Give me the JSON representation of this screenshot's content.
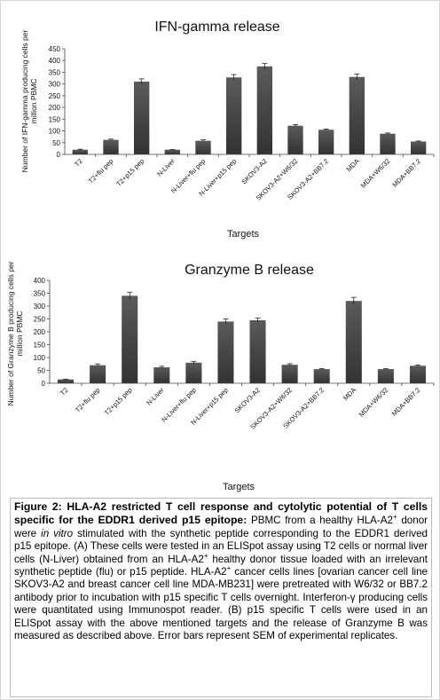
{
  "chart_data": [
    {
      "type": "bar",
      "title": "IFN-gamma release",
      "ylabel_lines": [
        "Number of IFN-gamma producing cells per",
        "million PBMC"
      ],
      "xlabel": "Targets",
      "ylim": [
        0,
        450
      ],
      "yticks": [
        0,
        50,
        100,
        150,
        200,
        250,
        300,
        350,
        400,
        450
      ],
      "categories": [
        "T2",
        "T2+flu pep",
        "T2+p15 pep",
        "N-Liver",
        "N-Liver+flu pep",
        "N-Liver+p15 pep",
        "SKOV3-A2",
        "SKOV3-A2+W6/32",
        "SKOV3-A2+BB7.2",
        "MDA",
        "MDA+W6/32",
        "MDA+BB7.2"
      ],
      "values": [
        20,
        62,
        310,
        20,
        58,
        328,
        375,
        122,
        105,
        330,
        88,
        55
      ],
      "errors": [
        2,
        3,
        12,
        1,
        4,
        12,
        12,
        5,
        3,
        12,
        3,
        2
      ],
      "bar_color": "#4a4a4a"
    },
    {
      "type": "bar",
      "title": "Granzyme B release",
      "ylabel_lines": [
        "Number of Granzyme B producing cells per",
        "million PBMC"
      ],
      "xlabel": "Targets",
      "ylim": [
        0,
        400
      ],
      "yticks": [
        0,
        50,
        100,
        150,
        200,
        250,
        300,
        350,
        400
      ],
      "categories": [
        "T2",
        "T2+flu pep",
        "T2+p15 pep",
        "N-Liver",
        "N-Liver+flu pep",
        "N-Liver+p15 pep",
        "SKOV3-A2",
        "SKOV3-A2+W6/32",
        "SKOV3-A2+BB7.2",
        "MDA",
        "MDA+W6/32",
        "MDA+BB7.2"
      ],
      "values": [
        15,
        70,
        340,
        62,
        80,
        240,
        245,
        72,
        55,
        320,
        55,
        68
      ],
      "errors": [
        1,
        5,
        14,
        4,
        4,
        10,
        8,
        4,
        2,
        14,
        2,
        3
      ],
      "bar_color": "#4a4a4a"
    }
  ],
  "caption": {
    "title": "Figure 2: HLA-A2 restricted T cell response and cytolytic potential of T cells specific for the EDDR1 derived p15 epitope:",
    "s1": " PBMC from a healthy HLA-A2",
    "s2": " donor were ",
    "s3": "in vitro",
    "s4": " stimulated with the synthetic peptide corresponding to the EDDR1 derived p15 epitope.  (A) These cells were tested in an ELISpot assay using T2 cells or normal liver cells (N-Liver) obtained from an HLA-A2",
    "s5": " healthy donor tissue loaded with an irrelevant synthetic peptide (flu) or p15 peptide. HLA-A2",
    "s6": " cancer cells lines [ovarian cancer cell line SKOV3-A2 and breast cancer cell line MDA-MB231] were pretreated with W6/32 or BB7.2 antibody prior to incubation with p15 specific T cells overnight.  Interferon-γ producing cells were quantitated using Immunospot reader. (B) p15 specific T cells were used in an ELISpot assay with the above mentioned targets and the release of Granzyme B was measured as described above. Error bars represent SEM of experimental replicates.",
    "sup": "+"
  }
}
